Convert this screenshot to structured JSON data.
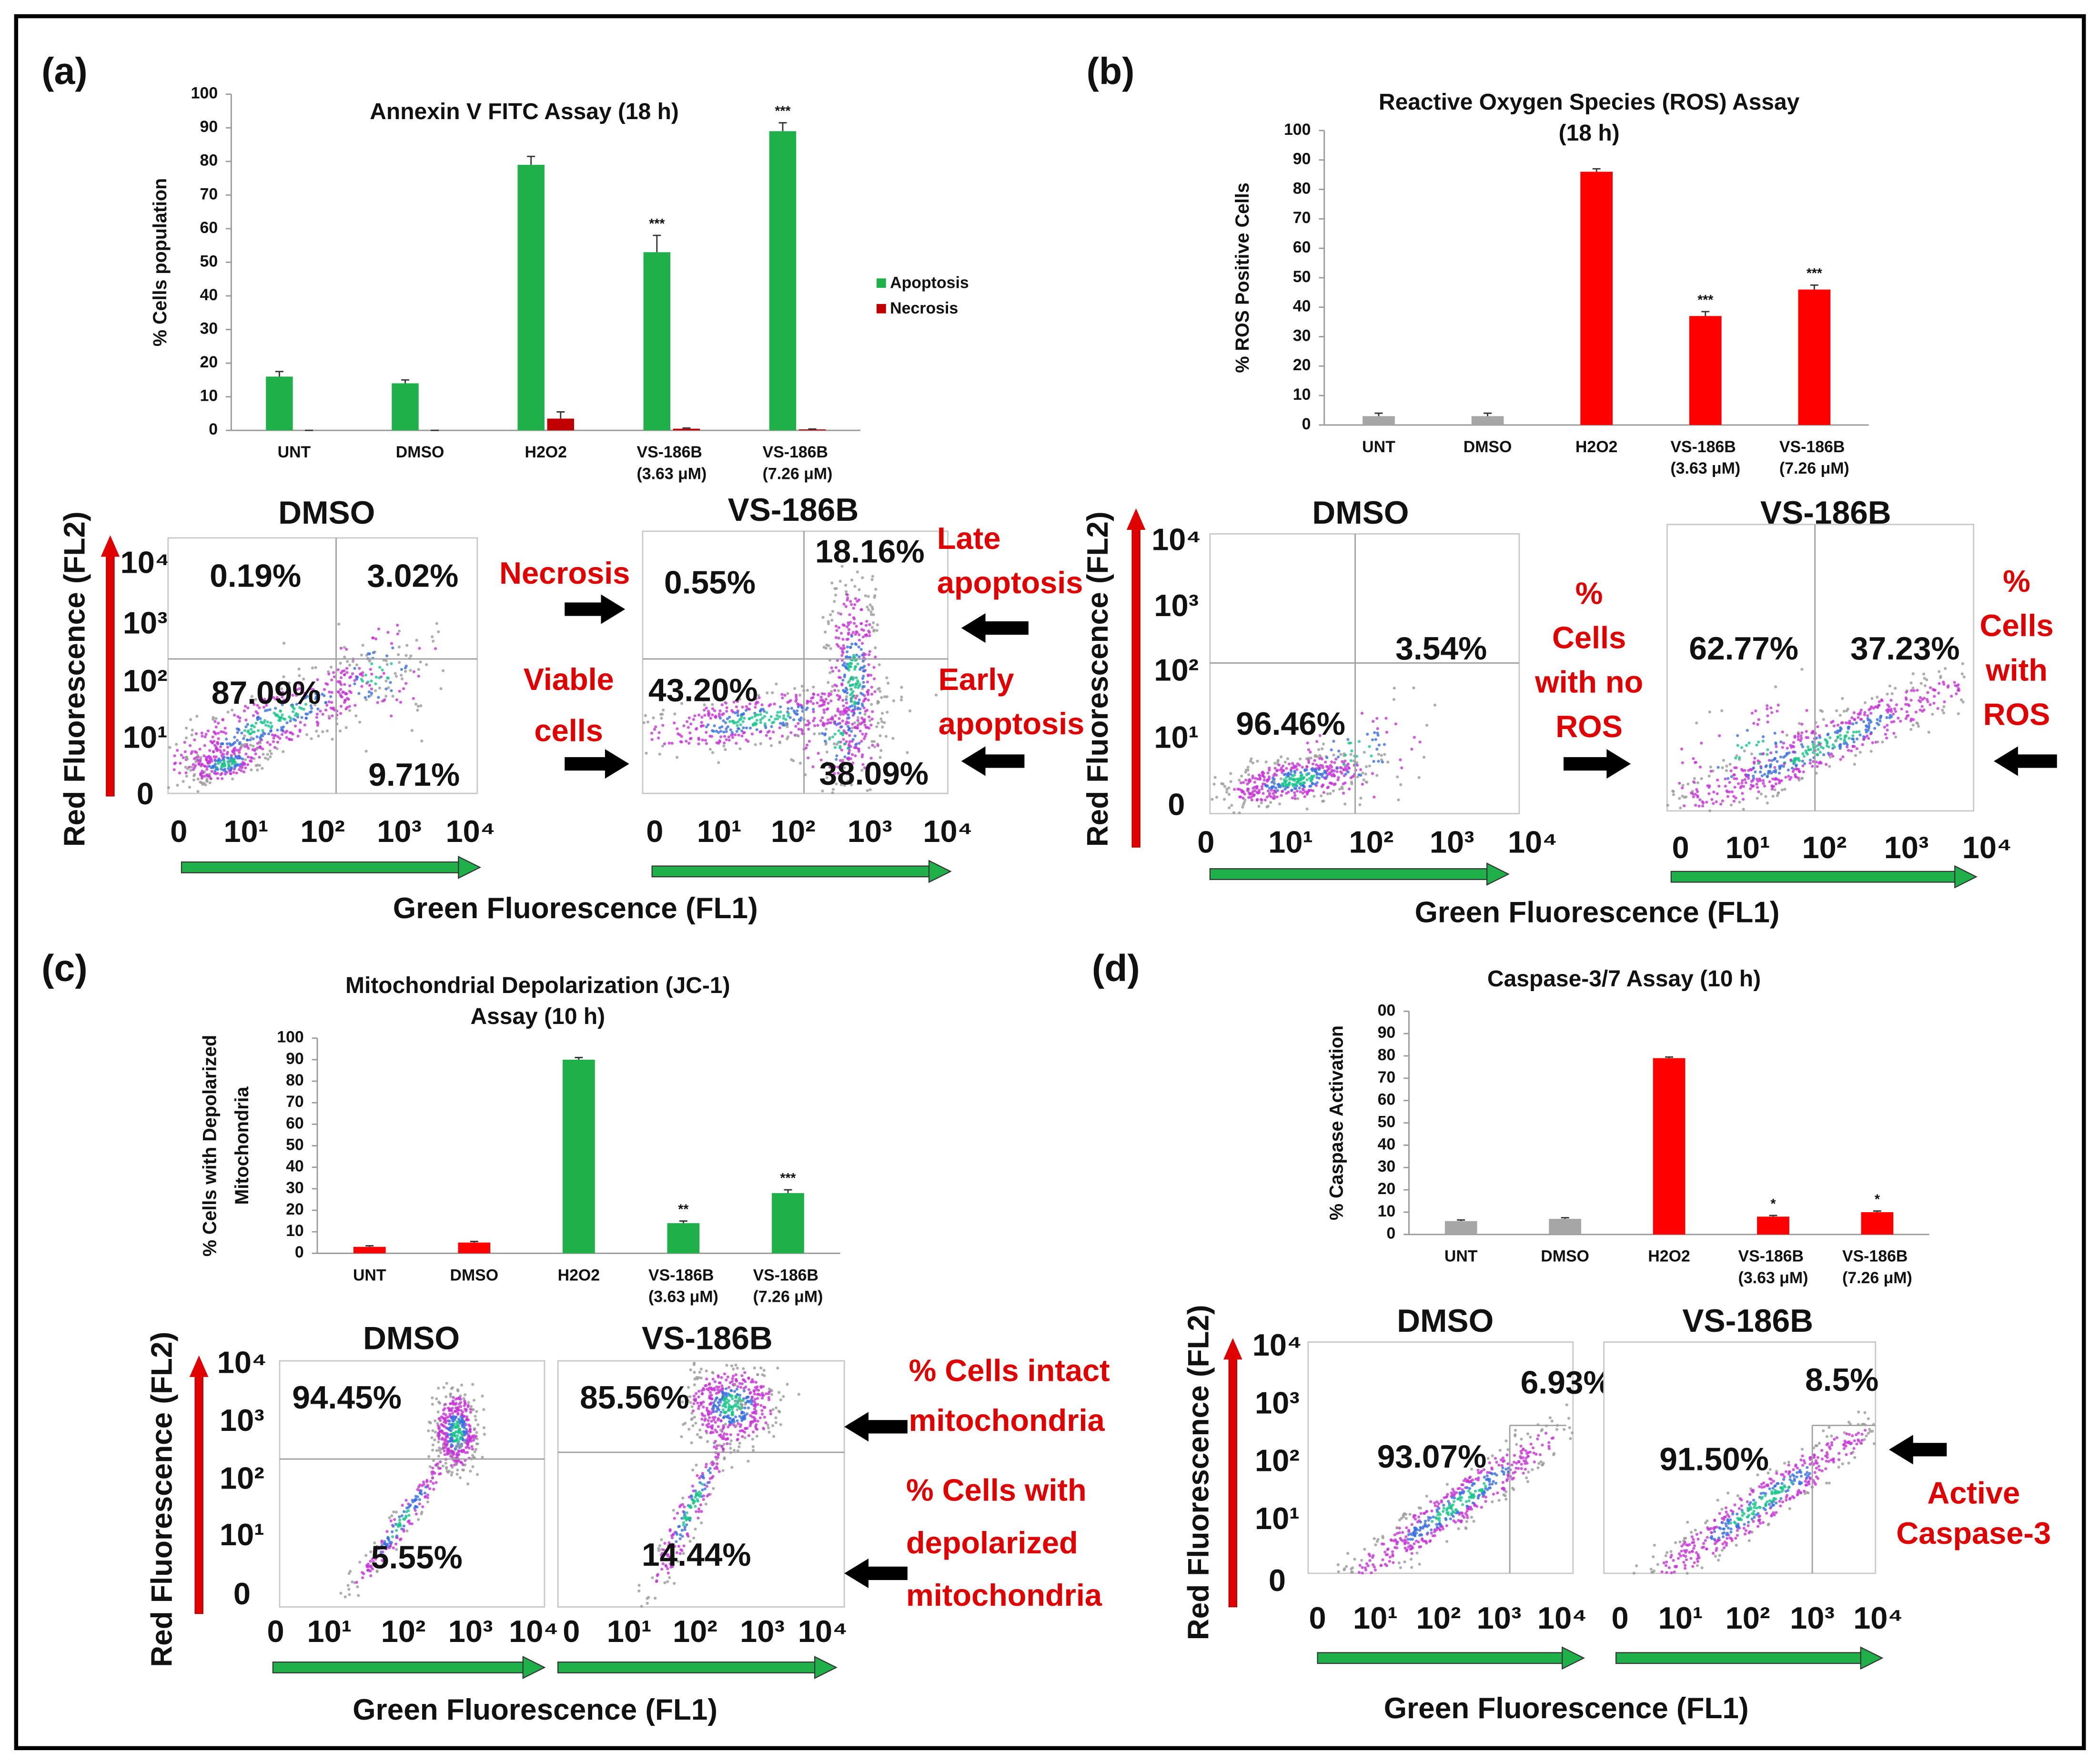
{
  "panels": [
    "(a)",
    "(b)",
    "(c)",
    "(d)"
  ],
  "chart_data": [
    {
      "type": "bar",
      "title": [
        "Annexin V FITC Assay (18 h)"
      ],
      "ylabel": [
        "% Cells population"
      ],
      "categories": [
        "UNT",
        "DMSO",
        "H2O2",
        "VS-186B (3.63 μM)",
        "VS-186B (7.26 μM)"
      ],
      "series": [
        {
          "name": "Apoptosis",
          "color": "#1fb04a",
          "values": [
            16,
            14,
            79,
            53,
            89
          ],
          "errors": [
            1.5,
            1,
            2.5,
            5,
            2.5
          ]
        },
        {
          "name": "Necrosis",
          "color": "#c00000",
          "values": [
            0,
            0,
            3.5,
            0.5,
            0.3
          ],
          "errors": [
            0,
            0,
            2,
            0.2,
            0.1
          ]
        }
      ],
      "significance": [
        null,
        null,
        null,
        "***",
        "***"
      ],
      "ylim": [
        0,
        100
      ],
      "yticks": [
        0,
        10,
        20,
        30,
        40,
        50,
        60,
        70,
        80,
        90,
        100
      ],
      "legend": "right"
    },
    {
      "type": "bar",
      "title": [
        "Reactive Oxygen Species (ROS) Assay",
        "(18 h)"
      ],
      "ylabel": [
        "% ROS Positive Cells"
      ],
      "categories": [
        "UNT",
        "DMSO",
        "H2O2",
        "VS-186B (3.63 μM)",
        "VS-186B (7.26 μM)"
      ],
      "series": [
        {
          "colors": [
            "#a6a6a6",
            "#a6a6a6",
            "#ff0000",
            "#ff0000",
            "#ff0000"
          ],
          "values": [
            3,
            3,
            86,
            37,
            46
          ],
          "errors": [
            1,
            1,
            1,
            1.5,
            1.5
          ]
        }
      ],
      "significance": [
        null,
        null,
        null,
        "***",
        "***"
      ],
      "ylim": [
        0,
        100
      ],
      "yticks": [
        0,
        10,
        20,
        30,
        40,
        50,
        60,
        70,
        80,
        90,
        100
      ]
    },
    {
      "type": "bar",
      "title": [
        "Mitochondrial Depolarization (JC-1)",
        "Assay (10 h)"
      ],
      "ylabel": [
        "% Cells with Depolarized",
        "Mitochondria"
      ],
      "categories": [
        "UNT",
        "DMSO",
        "H2O2",
        "VS-186B (3.63 μM)",
        "VS-186B (7.26 μM)"
      ],
      "series": [
        {
          "colors": [
            "#ff0000",
            "#ff0000",
            "#1fb04a",
            "#1fb04a",
            "#1fb04a"
          ],
          "values": [
            3,
            5,
            90,
            14,
            28
          ],
          "errors": [
            0.5,
            0.5,
            1,
            1,
            1.5
          ]
        }
      ],
      "significance": [
        null,
        null,
        null,
        "**",
        "***"
      ],
      "ylim": [
        0,
        100
      ],
      "yticks": [
        0,
        10,
        20,
        30,
        40,
        50,
        60,
        70,
        80,
        90,
        100
      ]
    },
    {
      "type": "bar",
      "title": [
        "Caspase-3/7 Assay (10 h)"
      ],
      "ylabel": [
        "% Caspase Activation"
      ],
      "categories": [
        "UNT",
        "DMSO",
        "H2O2",
        "VS-186B (3.63 μM)",
        "VS-186B (7.26 μM)"
      ],
      "series": [
        {
          "colors": [
            "#a6a6a6",
            "#a6a6a6",
            "#ff0000",
            "#ff0000",
            "#ff0000"
          ],
          "values": [
            6,
            7,
            79,
            8,
            10
          ],
          "errors": [
            0.5,
            0.5,
            0.5,
            0.5,
            0.5
          ]
        }
      ],
      "significance": [
        null,
        null,
        null,
        "*",
        "*"
      ],
      "ylim": [
        0,
        100
      ],
      "yticks": [
        0,
        10,
        20,
        30,
        40,
        50,
        60,
        70,
        80,
        90,
        {
          "value": 100,
          "label": "00"
        }
      ]
    }
  ],
  "flow": [
    {
      "ylabel": "Red Fluorescence (FL2)",
      "xlabel": "Green Fluorescence (FL1)",
      "yticks": [
        "10⁴",
        "10³",
        "10²",
        "10¹",
        "0"
      ],
      "plots": [
        {
          "title": "DMSO",
          "xticks": [
            "0",
            "10¹",
            "10²",
            "10³",
            "10⁴"
          ],
          "quadrants": [
            "0.19%",
            "3.02%",
            "87.09%",
            "9.71%"
          ]
        },
        {
          "title": "VS-186B",
          "xticks": [
            "0",
            "10¹",
            "10²",
            "10³",
            "10⁴"
          ],
          "quadrants": [
            "0.55%",
            "18.16%",
            "43.20%",
            "38.09%"
          ]
        }
      ],
      "annotations": [
        [
          "Necrosis"
        ],
        [
          "Viable",
          "cells"
        ],
        [
          "Late",
          "apoptosis"
        ],
        [
          "Early",
          "apoptosis"
        ]
      ]
    },
    {
      "ylabel": "Red Fluorescence (FL2)",
      "xlabel": "Green Fluorescence (FL1)",
      "yticks": [
        "10⁴",
        "10³",
        "10²",
        "10¹",
        "0"
      ],
      "plots": [
        {
          "title": "DMSO",
          "xticks": [
            "0",
            "10¹",
            "10²",
            "10³",
            "10⁴"
          ],
          "quadrants": [
            "3.54%",
            "96.46%"
          ]
        },
        {
          "title": "VS-186B",
          "xticks": [
            "0",
            "10¹",
            "10²",
            "10³",
            "10⁴"
          ],
          "quadrants": [
            "62.77%",
            "37.23%"
          ]
        }
      ],
      "annotations": [
        [
          "%",
          "Cells",
          "with no",
          "ROS"
        ],
        [
          "%",
          "Cells",
          "with",
          "ROS"
        ]
      ]
    },
    {
      "ylabel": "Red Fluorescence (FL2)",
      "xlabel": "Green Fluorescence (FL1)",
      "yticks": [
        "10⁴",
        "10³",
        "10²",
        "10¹",
        "0"
      ],
      "plots": [
        {
          "title": "DMSO",
          "xticks": [
            "0",
            "10¹",
            "10²",
            "10³",
            "10⁴"
          ],
          "quadrants": [
            "94.45%",
            "5.55%"
          ]
        },
        {
          "title": "VS-186B",
          "xticks": [
            "0",
            "10¹",
            "10²",
            "10³",
            "10⁴"
          ],
          "quadrants": [
            "85.56%",
            "14.44%"
          ]
        }
      ],
      "annotations": [
        [
          "% Cells intact",
          "mitochondria"
        ],
        [
          "% Cells with",
          "depolarized",
          "mitochondria"
        ]
      ]
    },
    {
      "ylabel": "Red Fluorescence (FL2)",
      "xlabel": "Green Fluorescence (FL1)",
      "yticks": [
        "10⁴",
        "10³",
        "10²",
        "10¹",
        "0"
      ],
      "plots": [
        {
          "title": "DMSO",
          "xticks": [
            "0",
            "10¹",
            "10²",
            "10³",
            "10⁴"
          ],
          "quadrants": [
            "6.93%",
            "93.07%"
          ]
        },
        {
          "title": "VS-186B",
          "xticks": [
            "0",
            "10¹",
            "10²",
            "10³",
            "10⁴"
          ],
          "quadrants": [
            "8.5%",
            "91.50%"
          ]
        }
      ],
      "annotations": [
        [
          "Active",
          "Caspase-3"
        ]
      ]
    }
  ]
}
